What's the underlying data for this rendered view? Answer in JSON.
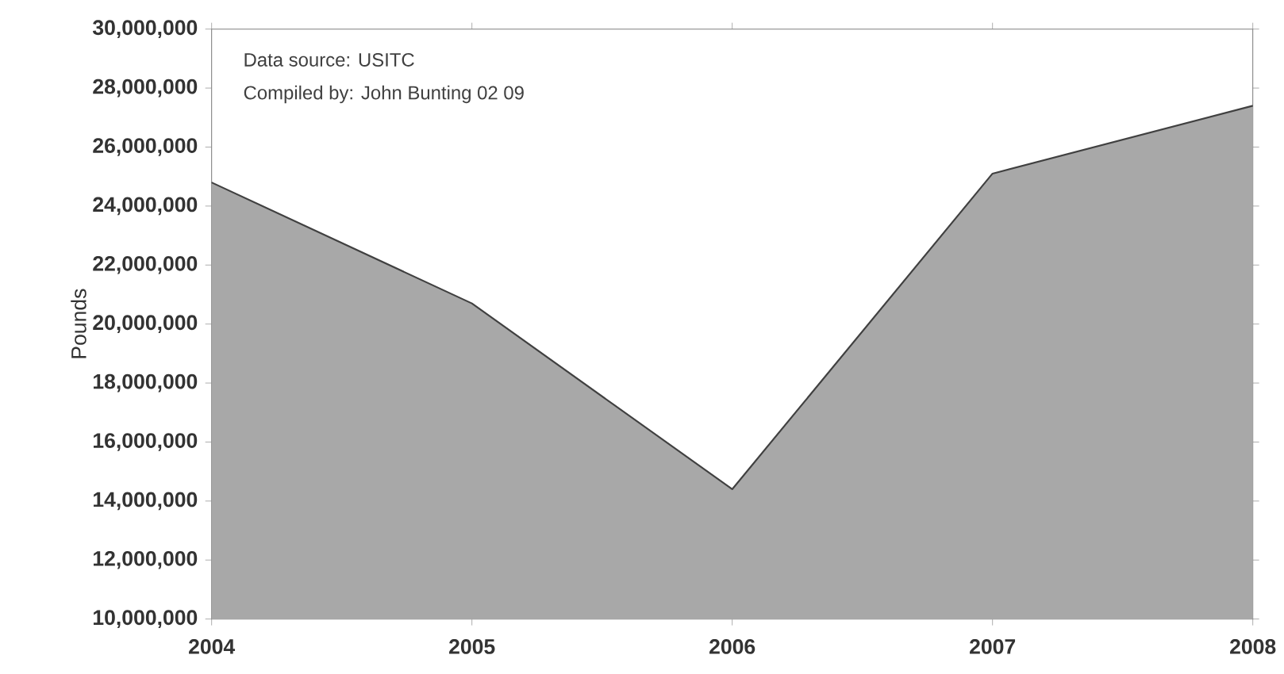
{
  "chart_data": {
    "type": "area",
    "ylabel": "Pounds",
    "annotations": [
      "Data source: USITC",
      "Compiled by: John Bunting 02 09"
    ],
    "x": [
      2004,
      2005,
      2006,
      2007,
      2008
    ],
    "values": [
      24800000,
      20700000,
      14400000,
      25100000,
      27400000
    ],
    "color": "#a8a8a8",
    "xlim": [
      2004,
      2008
    ],
    "xticks": [
      2004,
      2005,
      2006,
      2007,
      2008
    ],
    "ylim": [
      10000000,
      30000000
    ],
    "yticks": [
      {
        "value": 10000000,
        "label": "10,000,000"
      },
      {
        "value": 12000000,
        "label": "12,000,000"
      },
      {
        "value": 14000000,
        "label": "14,000,000"
      },
      {
        "value": 16000000,
        "label": "16,000,000"
      },
      {
        "value": 18000000,
        "label": "18,000,000"
      },
      {
        "value": 20000000,
        "label": "20,000,000"
      },
      {
        "value": 22000000,
        "label": "22,000,000"
      },
      {
        "value": 24000000,
        "label": "24,000,000"
      },
      {
        "value": 26000000,
        "label": "26,000,000"
      },
      {
        "value": 28000000,
        "label": "28,000,000"
      },
      {
        "value": 30000000,
        "label": "30,000,000"
      }
    ]
  }
}
